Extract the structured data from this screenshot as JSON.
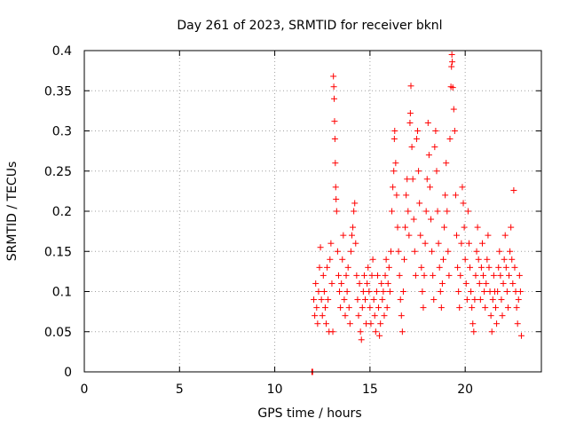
{
  "chart_data": {
    "type": "scatter",
    "title": "Day 261 of 2023, SRMTID for receiver bknl",
    "xlabel": "GPS time / hours",
    "ylabel": "SRMTID / TECUs",
    "xlim": [
      0,
      24
    ],
    "ylim": [
      0,
      0.4
    ],
    "xticks": [
      "0",
      "5",
      "10",
      "15",
      "20"
    ],
    "xtick_values": [
      0,
      5,
      10,
      15,
      20
    ],
    "yticks": [
      "0",
      "0.05",
      "0.1",
      "0.15",
      "0.2",
      "0.25",
      "0.3",
      "0.35",
      "0.4"
    ],
    "ytick_values": [
      0,
      0.05,
      0.1,
      0.15,
      0.2,
      0.25,
      0.3,
      0.35,
      0.4
    ],
    "grid": true,
    "marker": "+",
    "color": "#ff0000",
    "series": [
      {
        "points": [
          [
            11.95,
            0.0
          ],
          [
            11.97,
            0.0
          ],
          [
            11.99,
            0.0
          ],
          [
            12.05,
            0.09
          ],
          [
            12.1,
            0.07
          ],
          [
            12.15,
            0.11
          ],
          [
            12.2,
            0.08
          ],
          [
            12.25,
            0.06
          ],
          [
            12.3,
            0.1
          ],
          [
            12.35,
            0.13
          ],
          [
            12.4,
            0.155
          ],
          [
            12.45,
            0.09
          ],
          [
            12.5,
            0.07
          ],
          [
            12.55,
            0.12
          ],
          [
            12.6,
            0.1
          ],
          [
            12.65,
            0.08
          ],
          [
            12.7,
            0.06
          ],
          [
            12.75,
            0.13
          ],
          [
            12.8,
            0.09
          ],
          [
            12.85,
            0.05
          ],
          [
            12.9,
            0.14
          ],
          [
            12.95,
            0.16
          ],
          [
            13.0,
            0.11
          ],
          [
            13.05,
            0.05
          ],
          [
            13.08,
            0.368
          ],
          [
            13.1,
            0.355
          ],
          [
            13.12,
            0.34
          ],
          [
            13.14,
            0.312
          ],
          [
            13.16,
            0.29
          ],
          [
            13.18,
            0.26
          ],
          [
            13.2,
            0.23
          ],
          [
            13.22,
            0.215
          ],
          [
            13.25,
            0.2
          ],
          [
            13.3,
            0.15
          ],
          [
            13.35,
            0.12
          ],
          [
            13.4,
            0.1
          ],
          [
            13.45,
            0.08
          ],
          [
            13.5,
            0.11
          ],
          [
            13.55,
            0.14
          ],
          [
            13.6,
            0.17
          ],
          [
            13.65,
            0.09
          ],
          [
            13.7,
            0.07
          ],
          [
            13.75,
            0.12
          ],
          [
            13.8,
            0.1
          ],
          [
            13.85,
            0.13
          ],
          [
            13.9,
            0.08
          ],
          [
            13.95,
            0.06
          ],
          [
            14.0,
            0.15
          ],
          [
            14.05,
            0.17
          ],
          [
            14.1,
            0.18
          ],
          [
            14.15,
            0.2
          ],
          [
            14.2,
            0.21
          ],
          [
            14.25,
            0.16
          ],
          [
            14.3,
            0.12
          ],
          [
            14.35,
            0.09
          ],
          [
            14.4,
            0.07
          ],
          [
            14.45,
            0.11
          ],
          [
            14.5,
            0.05
          ],
          [
            14.55,
            0.04
          ],
          [
            14.6,
            0.08
          ],
          [
            14.65,
            0.1
          ],
          [
            14.7,
            0.12
          ],
          [
            14.75,
            0.09
          ],
          [
            14.8,
            0.06
          ],
          [
            14.85,
            0.11
          ],
          [
            14.9,
            0.13
          ],
          [
            14.95,
            0.1
          ],
          [
            15.0,
            0.08
          ],
          [
            15.05,
            0.06
          ],
          [
            15.1,
            0.12
          ],
          [
            15.15,
            0.14
          ],
          [
            15.2,
            0.09
          ],
          [
            15.25,
            0.07
          ],
          [
            15.3,
            0.05
          ],
          [
            15.35,
            0.1
          ],
          [
            15.4,
            0.12
          ],
          [
            15.45,
            0.08
          ],
          [
            15.5,
            0.045
          ],
          [
            15.55,
            0.06
          ],
          [
            15.6,
            0.11
          ],
          [
            15.65,
            0.09
          ],
          [
            15.7,
            0.1
          ],
          [
            15.75,
            0.07
          ],
          [
            15.8,
            0.12
          ],
          [
            15.85,
            0.14
          ],
          [
            15.9,
            0.08
          ],
          [
            15.95,
            0.11
          ],
          [
            16.0,
            0.13
          ],
          [
            16.05,
            0.1
          ],
          [
            16.1,
            0.15
          ],
          [
            16.15,
            0.2
          ],
          [
            16.2,
            0.23
          ],
          [
            16.25,
            0.25
          ],
          [
            16.28,
            0.29
          ],
          [
            16.3,
            0.3
          ],
          [
            16.35,
            0.26
          ],
          [
            16.4,
            0.22
          ],
          [
            16.45,
            0.18
          ],
          [
            16.5,
            0.15
          ],
          [
            16.55,
            0.12
          ],
          [
            16.6,
            0.09
          ],
          [
            16.65,
            0.07
          ],
          [
            16.7,
            0.05
          ],
          [
            16.75,
            0.1
          ],
          [
            16.8,
            0.14
          ],
          [
            16.85,
            0.18
          ],
          [
            16.9,
            0.22
          ],
          [
            16.95,
            0.24
          ],
          [
            17.0,
            0.2
          ],
          [
            17.05,
            0.17
          ],
          [
            17.1,
            0.31
          ],
          [
            17.12,
            0.322
          ],
          [
            17.15,
            0.356
          ],
          [
            17.2,
            0.28
          ],
          [
            17.25,
            0.24
          ],
          [
            17.3,
            0.19
          ],
          [
            17.35,
            0.15
          ],
          [
            17.4,
            0.12
          ],
          [
            17.45,
            0.29
          ],
          [
            17.5,
            0.3
          ],
          [
            17.55,
            0.25
          ],
          [
            17.6,
            0.21
          ],
          [
            17.65,
            0.17
          ],
          [
            17.7,
            0.13
          ],
          [
            17.75,
            0.1
          ],
          [
            17.8,
            0.08
          ],
          [
            17.85,
            0.12
          ],
          [
            17.9,
            0.16
          ],
          [
            17.95,
            0.2
          ],
          [
            18.0,
            0.24
          ],
          [
            18.05,
            0.31
          ],
          [
            18.1,
            0.27
          ],
          [
            18.15,
            0.23
          ],
          [
            18.2,
            0.19
          ],
          [
            18.25,
            0.15
          ],
          [
            18.3,
            0.12
          ],
          [
            18.35,
            0.09
          ],
          [
            18.4,
            0.28
          ],
          [
            18.45,
            0.3
          ],
          [
            18.5,
            0.25
          ],
          [
            18.55,
            0.2
          ],
          [
            18.6,
            0.16
          ],
          [
            18.65,
            0.13
          ],
          [
            18.7,
            0.1
          ],
          [
            18.75,
            0.08
          ],
          [
            18.8,
            0.11
          ],
          [
            18.85,
            0.14
          ],
          [
            18.9,
            0.18
          ],
          [
            18.95,
            0.22
          ],
          [
            19.0,
            0.26
          ],
          [
            19.05,
            0.2
          ],
          [
            19.1,
            0.15
          ],
          [
            19.15,
            0.12
          ],
          [
            19.2,
            0.29
          ],
          [
            19.25,
            0.355
          ],
          [
            19.28,
            0.38
          ],
          [
            19.3,
            0.395
          ],
          [
            19.32,
            0.386
          ],
          [
            19.35,
            0.354
          ],
          [
            19.4,
            0.327
          ],
          [
            19.45,
            0.3
          ],
          [
            19.5,
            0.22
          ],
          [
            19.55,
            0.17
          ],
          [
            19.6,
            0.13
          ],
          [
            19.65,
            0.1
          ],
          [
            19.7,
            0.08
          ],
          [
            19.75,
            0.12
          ],
          [
            19.8,
            0.16
          ],
          [
            19.85,
            0.23
          ],
          [
            19.9,
            0.21
          ],
          [
            19.95,
            0.18
          ],
          [
            20.0,
            0.14
          ],
          [
            20.05,
            0.11
          ],
          [
            20.1,
            0.09
          ],
          [
            20.15,
            0.2
          ],
          [
            20.2,
            0.16
          ],
          [
            20.25,
            0.13
          ],
          [
            20.3,
            0.1
          ],
          [
            20.35,
            0.08
          ],
          [
            20.4,
            0.06
          ],
          [
            20.45,
            0.05
          ],
          [
            20.5,
            0.09
          ],
          [
            20.55,
            0.12
          ],
          [
            20.6,
            0.15
          ],
          [
            20.65,
            0.18
          ],
          [
            20.7,
            0.14
          ],
          [
            20.75,
            0.11
          ],
          [
            20.8,
            0.09
          ],
          [
            20.85,
            0.13
          ],
          [
            20.9,
            0.16
          ],
          [
            20.95,
            0.12
          ],
          [
            21.0,
            0.1
          ],
          [
            21.05,
            0.08
          ],
          [
            21.1,
            0.11
          ],
          [
            21.15,
            0.14
          ],
          [
            21.2,
            0.17
          ],
          [
            21.25,
            0.13
          ],
          [
            21.3,
            0.1
          ],
          [
            21.35,
            0.07
          ],
          [
            21.4,
            0.05
          ],
          [
            21.45,
            0.09
          ],
          [
            21.5,
            0.12
          ],
          [
            21.55,
            0.1
          ],
          [
            21.6,
            0.08
          ],
          [
            21.65,
            0.06
          ],
          [
            21.7,
            0.1
          ],
          [
            21.75,
            0.13
          ],
          [
            21.8,
            0.15
          ],
          [
            21.85,
            0.12
          ],
          [
            21.9,
            0.09
          ],
          [
            21.95,
            0.07
          ],
          [
            22.0,
            0.11
          ],
          [
            22.05,
            0.14
          ],
          [
            22.1,
            0.17
          ],
          [
            22.15,
            0.13
          ],
          [
            22.2,
            0.1
          ],
          [
            22.25,
            0.08
          ],
          [
            22.3,
            0.12
          ],
          [
            22.35,
            0.15
          ],
          [
            22.4,
            0.18
          ],
          [
            22.45,
            0.14
          ],
          [
            22.5,
            0.11
          ],
          [
            22.55,
            0.226
          ],
          [
            22.6,
            0.13
          ],
          [
            22.65,
            0.1
          ],
          [
            22.7,
            0.08
          ],
          [
            22.75,
            0.06
          ],
          [
            22.8,
            0.09
          ],
          [
            22.85,
            0.12
          ],
          [
            22.9,
            0.1
          ],
          [
            22.95,
            0.045
          ]
        ]
      }
    ]
  }
}
